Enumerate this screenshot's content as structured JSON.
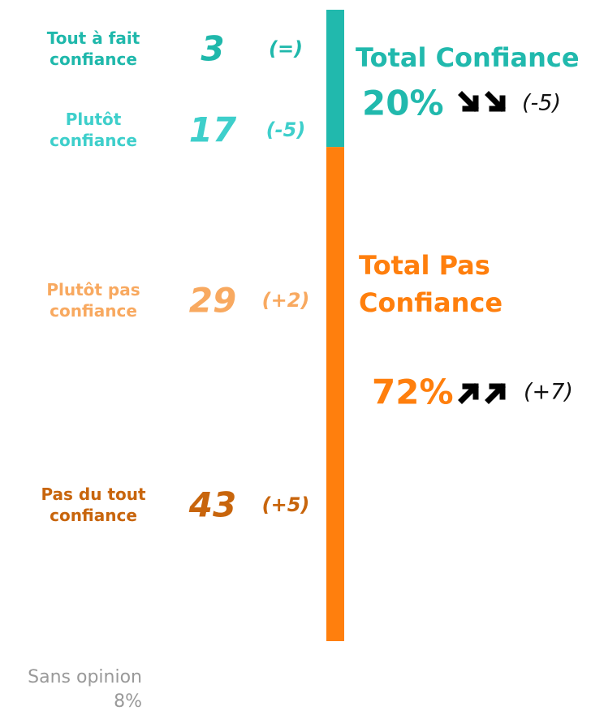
{
  "chart_data": {
    "type": "stacked-bar",
    "items": [
      {
        "label": "Tout à fait confiance",
        "value": 3,
        "change": "(=)",
        "color": "#1fb8ab"
      },
      {
        "label": "Plutôt confiance",
        "value": 17,
        "change": "(-5)",
        "color": "#3ecfcb"
      },
      {
        "label": "Plutôt pas confiance",
        "value": 29,
        "change": "(+2)",
        "color": "#f8a960"
      },
      {
        "label": "Pas du tout confiance",
        "value": 43,
        "change": "(+5)",
        "color": "#c8650c"
      }
    ],
    "totals": [
      {
        "label": "Total Confiance",
        "value": 20,
        "value_label": "20%",
        "change": "(-5)",
        "trend": "down",
        "color": "#21b9ad"
      },
      {
        "label": "Total Pas Confiance",
        "value": 72,
        "value_label": "72%",
        "change": "(+7)",
        "trend": "up",
        "color": "#ff7f0d"
      }
    ],
    "note": {
      "label": "Sans opinion",
      "value_label": "8%"
    }
  }
}
